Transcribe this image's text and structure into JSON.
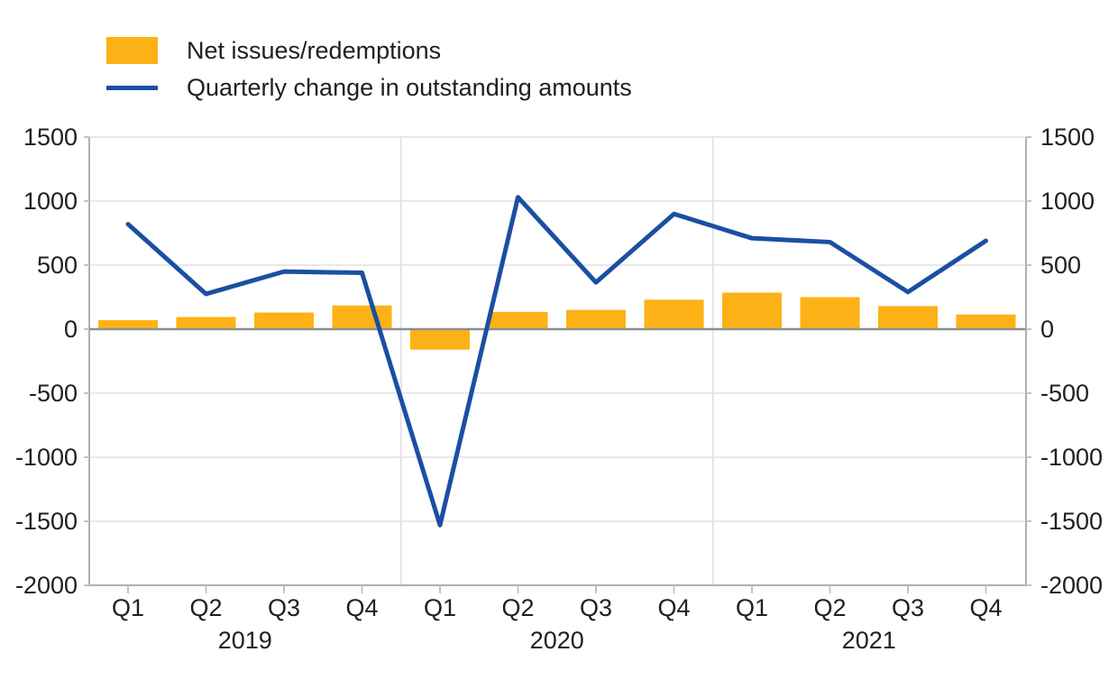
{
  "chart_data": {
    "type": "bar",
    "categories": [
      "Q1",
      "Q2",
      "Q3",
      "Q4",
      "Q1",
      "Q2",
      "Q3",
      "Q4",
      "Q1",
      "Q2",
      "Q3",
      "Q4"
    ],
    "years": [
      {
        "label": "2019",
        "start": 0,
        "end": 3
      },
      {
        "label": "2020",
        "start": 4,
        "end": 7
      },
      {
        "label": "2021",
        "start": 8,
        "end": 11
      }
    ],
    "series": [
      {
        "name": "Net issues/redemptions",
        "type": "bar",
        "color": "#fcb216",
        "values": [
          70,
          95,
          130,
          185,
          -160,
          135,
          150,
          230,
          285,
          250,
          180,
          115
        ]
      },
      {
        "name": "Quarterly change in outstanding amounts",
        "type": "line",
        "color": "#1b4fa3",
        "values": [
          820,
          275,
          450,
          440,
          -1530,
          1030,
          365,
          900,
          710,
          680,
          290,
          690
        ]
      }
    ],
    "ylim": [
      -2000,
      1500
    ],
    "yticks": [
      1500,
      1000,
      500,
      0,
      -500,
      -1000,
      -1500,
      -2000
    ],
    "ytick_interval": 500,
    "grid": true,
    "legend_position": "top-left",
    "dual_y_axis_labels": true,
    "colors": {
      "grid": "#e8e8e8",
      "year_separator": "#e3e3e3",
      "frame": "#b0b0b0",
      "zero_line": "#8e8e8e",
      "tick_mark": "#c4c4c4",
      "text": "#202020",
      "background": "#ffffff"
    }
  }
}
